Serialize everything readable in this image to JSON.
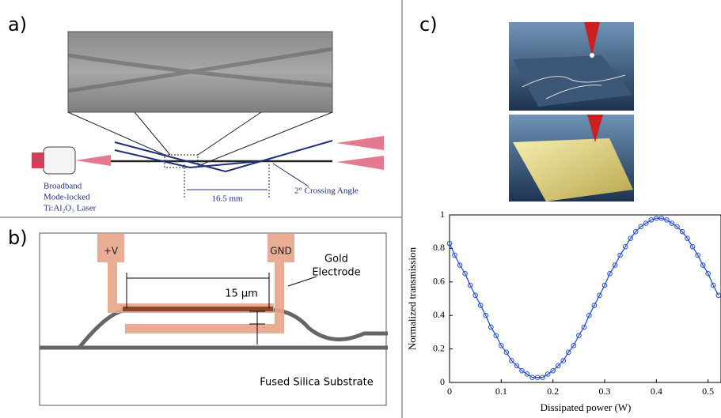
{
  "panel_labels": [
    "a)",
    "b)",
    "c)"
  ],
  "panel_a": {
    "laser_label": [
      "Broadband",
      "Mode-locked",
      "Ti:Al₂O₃ Laser"
    ],
    "distance": "16.5 mm",
    "angle": "2° Crossing Angle"
  },
  "panel_b": {
    "plus": "+V",
    "ground": "GND",
    "electrode": [
      "Gold",
      "Electrode"
    ],
    "gap": "15 µm",
    "substrate": "Fused Silica Substrate"
  },
  "chart_data": {
    "type": "line",
    "x_label": "Dissipated power (W)",
    "y_label": "Normalized transmission",
    "xlim": [
      0,
      0.525
    ],
    "ylim": [
      0,
      1
    ],
    "xticks": [
      0,
      0.1,
      0.2,
      0.3,
      0.4,
      0.5
    ],
    "yticks": [
      0,
      0.2,
      0.4,
      0.6,
      0.8,
      1
    ],
    "grid": false,
    "x": [
      0,
      0.01,
      0.02,
      0.03,
      0.04,
      0.05,
      0.06,
      0.07,
      0.08,
      0.09,
      0.1,
      0.11,
      0.12,
      0.13,
      0.14,
      0.15,
      0.16,
      0.17,
      0.18,
      0.19,
      0.2,
      0.21,
      0.22,
      0.23,
      0.24,
      0.25,
      0.26,
      0.27,
      0.28,
      0.29,
      0.3,
      0.31,
      0.32,
      0.33,
      0.34,
      0.35,
      0.36,
      0.37,
      0.38,
      0.39,
      0.4,
      0.41,
      0.42,
      0.43,
      0.44,
      0.45,
      0.46,
      0.47,
      0.48,
      0.49,
      0.5,
      0.51,
      0.52
    ],
    "series": [
      {
        "color": "#2b55c8",
        "values": [
          0.83,
          0.76,
          0.7,
          0.65,
          0.58,
          0.52,
          0.46,
          0.4,
          0.33,
          0.28,
          0.22,
          0.18,
          0.13,
          0.1,
          0.07,
          0.05,
          0.03,
          0.03,
          0.03,
          0.05,
          0.07,
          0.1,
          0.13,
          0.18,
          0.22,
          0.28,
          0.33,
          0.4,
          0.46,
          0.52,
          0.58,
          0.65,
          0.7,
          0.76,
          0.81,
          0.86,
          0.9,
          0.93,
          0.95,
          0.97,
          0.98,
          0.98,
          0.97,
          0.95,
          0.93,
          0.9,
          0.86,
          0.81,
          0.76,
          0.7,
          0.65,
          0.58,
          0.52
        ]
      }
    ]
  }
}
